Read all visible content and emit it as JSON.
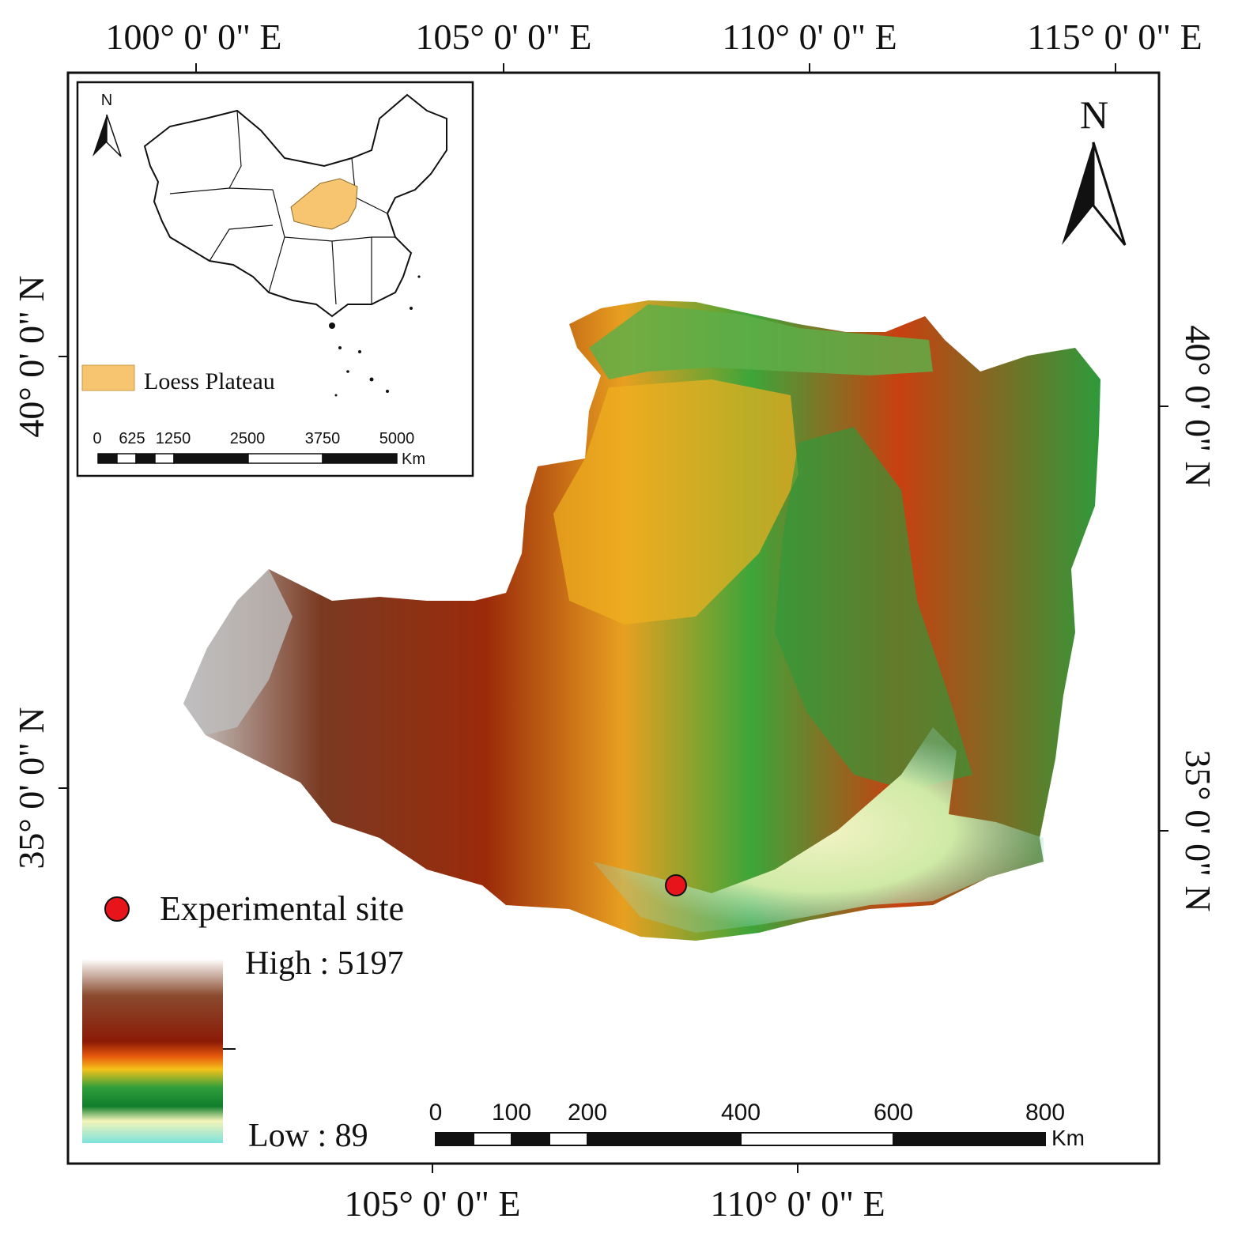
{
  "graticule": {
    "top": [
      "100° 0' 0\" E",
      "105° 0' 0\" E",
      "110° 0' 0\" E",
      "115° 0' 0\" E"
    ],
    "bottom": [
      "105° 0' 0\" E",
      "110° 0' 0\" E"
    ],
    "left": [
      "40° 0' 0\" N",
      "35° 0' 0\" N"
    ],
    "right": [
      "40° 0' 0\" N",
      "35° 0' 0\" N"
    ]
  },
  "north_arrow": {
    "label": "N"
  },
  "inset": {
    "north_label": "N",
    "legend_label": "Loess Plateau",
    "highlight_color": "#f7c56f",
    "scale_labels": [
      "0",
      "625",
      "1250",
      "2500",
      "3750",
      "5000"
    ],
    "scale_unit": "Km"
  },
  "legend": {
    "site_label": "Experimental site",
    "site_color": "#e8141b",
    "elevation_high": "High : 5197",
    "elevation_low": "Low : 89",
    "ramp_colors": [
      "#ffffff",
      "#8a4a2e",
      "#8b1a06",
      "#e85a0c",
      "#f4c21a",
      "#2f9e3b",
      "#0f7d2c",
      "#f4f4b8",
      "#7ee2dc"
    ]
  },
  "scale_bar": {
    "labels": [
      "0",
      "100",
      "200",
      "400",
      "600",
      "800"
    ],
    "unit": "Km"
  }
}
